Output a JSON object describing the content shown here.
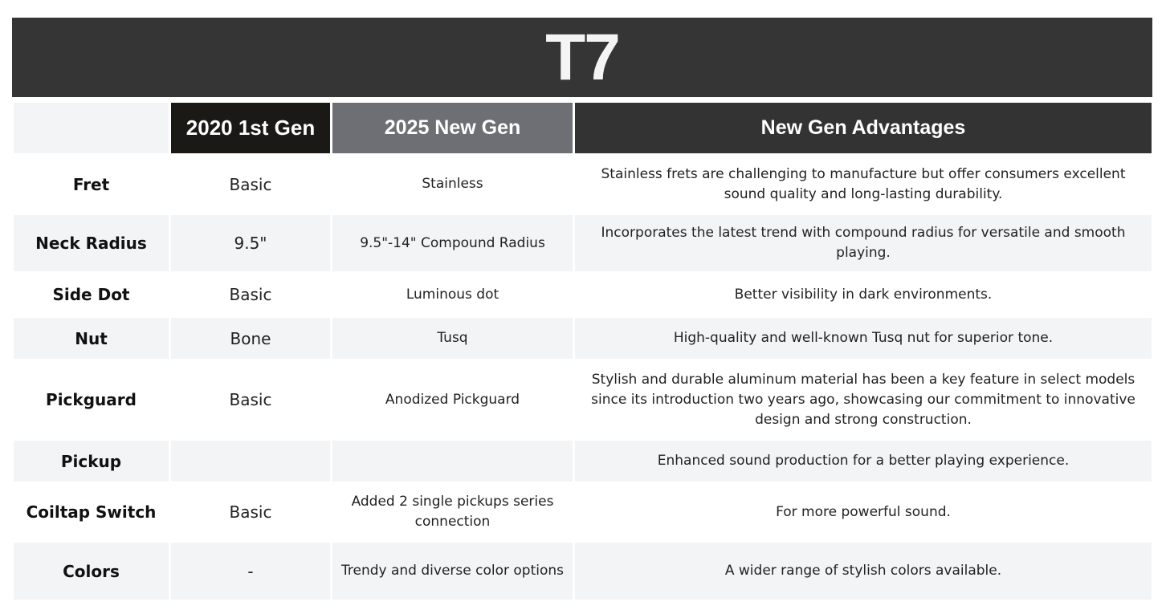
{
  "title": "T7",
  "headers": [
    "",
    "2020 1st Gen",
    "2025 New Gen",
    "New Gen Advantages"
  ],
  "header_colors": {
    "first_gen": "#1a1915",
    "new_gen": "#6e6f75",
    "advantages": "#333333",
    "title_bar": "#353535"
  },
  "rows": [
    {
      "feature": "Fret",
      "first_gen": "Basic",
      "new_gen": "Stainless",
      "advantage": "Stainless frets are challenging to manufacture but offer consumers excellent sound quality and long-lasting durability."
    },
    {
      "feature": "Neck Radius",
      "first_gen": "9.5\"",
      "new_gen": "9.5\"-14\" Compound Radius",
      "advantage": "Incorporates the latest trend with compound radius for versatile and smooth playing."
    },
    {
      "feature": "Side Dot",
      "first_gen": "Basic",
      "new_gen": "Luminous dot",
      "advantage": "Better visibility in dark environments."
    },
    {
      "feature": "Nut",
      "first_gen": "Bone",
      "new_gen": "Tusq",
      "advantage": "High-quality and well-known Tusq nut for superior tone."
    },
    {
      "feature": "Pickguard",
      "first_gen": "Basic",
      "new_gen": "Anodized Pickguard",
      "advantage": "Stylish and durable aluminum material has been a key feature in select models since its introduction two years ago, showcasing our commitment to innovative design and strong construction."
    },
    {
      "feature": "Pickup",
      "first_gen": "",
      "new_gen": "",
      "advantage": "Enhanced sound production for a better playing experience."
    },
    {
      "feature": "Coiltap Switch",
      "first_gen": "Basic",
      "new_gen": "Added 2 single pickups series connection",
      "advantage": "For more powerful sound."
    },
    {
      "feature": "Colors",
      "first_gen": "-",
      "new_gen": "Trendy and diverse color options",
      "advantage": "A wider range of stylish colors available."
    }
  ]
}
